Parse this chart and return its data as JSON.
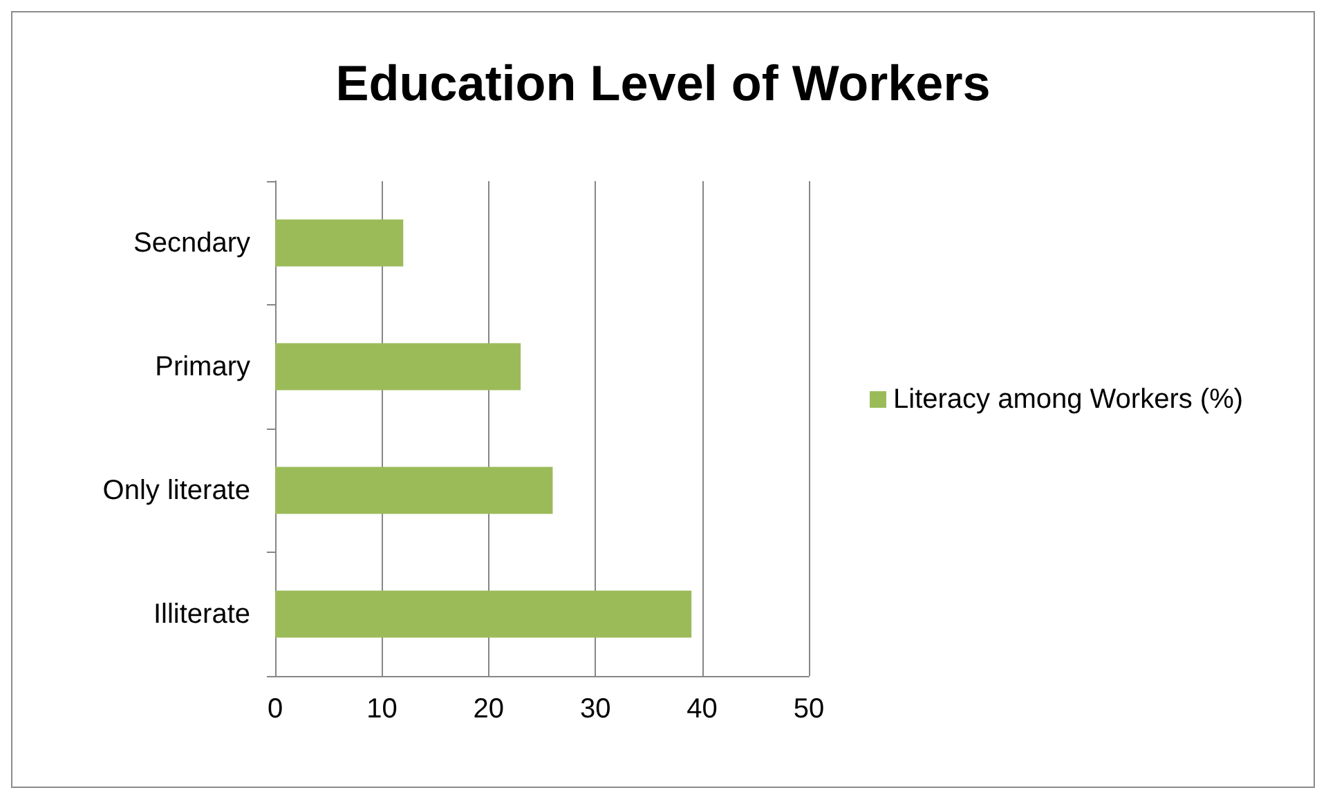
{
  "chart_data": {
    "type": "bar",
    "orientation": "horizontal",
    "title": "Education Level of Workers",
    "categories": [
      "Secndary",
      "Primary",
      "Only literate",
      "Illiterate"
    ],
    "series": [
      {
        "name": "Literacy among Workers (%)",
        "color": "#9bbb59",
        "values": [
          12,
          23,
          26,
          39
        ]
      }
    ],
    "xlim": [
      0,
      50
    ],
    "xticks": [
      0,
      10,
      20,
      30,
      40,
      50
    ],
    "grid": "x",
    "legend": "right"
  }
}
